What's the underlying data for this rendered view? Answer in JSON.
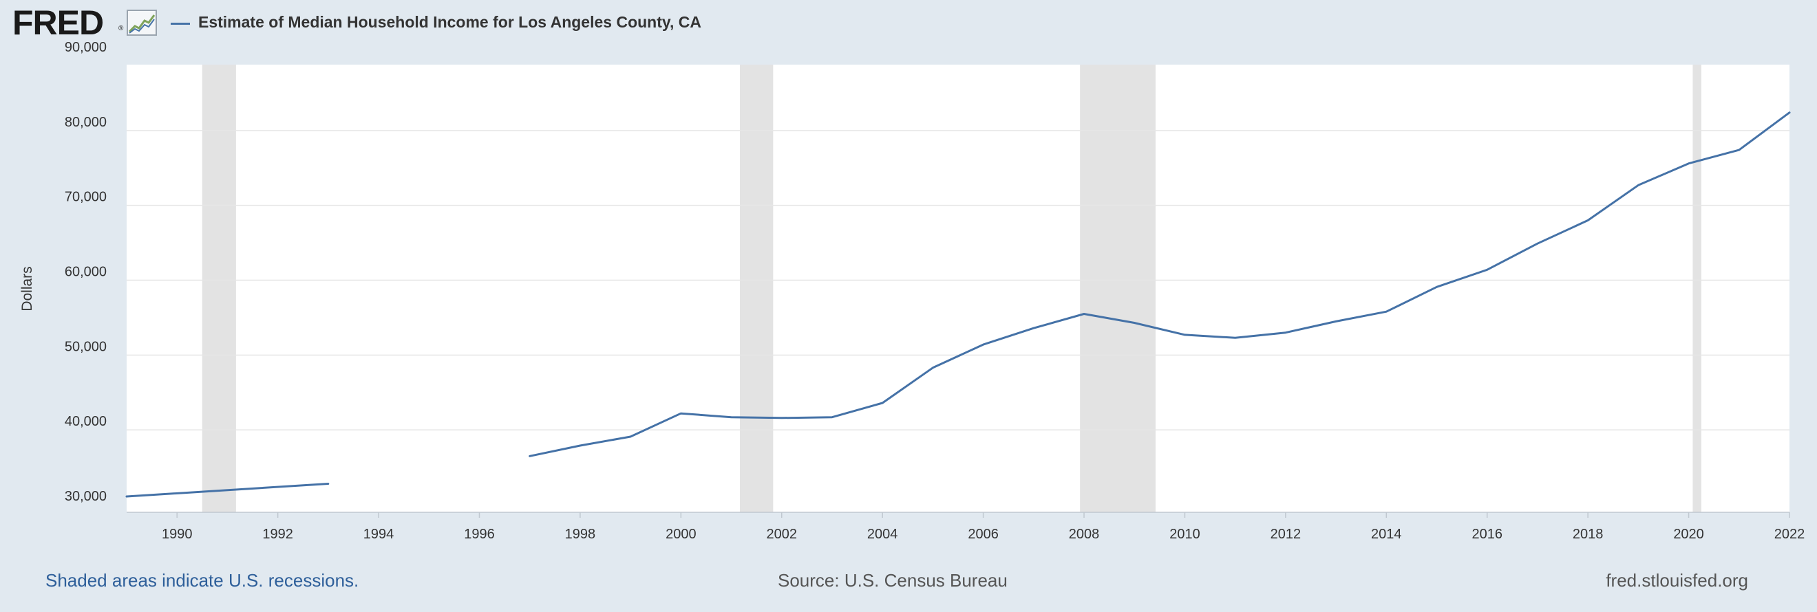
{
  "header": {
    "logo_text": "FRED",
    "logo_reg": "®",
    "legend_label": "Estimate of Median Household Income for Los Angeles County, CA"
  },
  "colors": {
    "series": "#4572a7",
    "recession": "#e3e3e3",
    "background": "#e1e9f0",
    "plot_background": "#ffffff",
    "grid": "#e6e6e6"
  },
  "chart_data": {
    "type": "line",
    "title": "",
    "xlabel": "",
    "ylabel": "Dollars",
    "xlim": [
      1989,
      2022
    ],
    "ylim": [
      30000,
      90000
    ],
    "y_ticks": [
      30000,
      40000,
      50000,
      60000,
      70000,
      80000,
      90000
    ],
    "y_tick_labels": [
      "30,000",
      "40,000",
      "50,000",
      "60,000",
      "70,000",
      "80,000",
      "90,000"
    ],
    "x_ticks": [
      1990,
      1992,
      1994,
      1996,
      1998,
      2000,
      2002,
      2004,
      2006,
      2008,
      2010,
      2012,
      2014,
      2016,
      2018,
      2020,
      2022
    ],
    "x_tick_labels": [
      "1990",
      "1992",
      "1994",
      "1996",
      "1998",
      "2000",
      "2002",
      "2004",
      "2006",
      "2008",
      "2010",
      "2012",
      "2014",
      "2016",
      "2018",
      "2020",
      "2022"
    ],
    "grid": true,
    "legend_position": "top-left",
    "series": [
      {
        "name": "Estimate of Median Household Income for Los Angeles County, CA",
        "segments": [
          [
            {
              "x": 1989,
              "y": 31100
            },
            {
              "x": 1993,
              "y": 32800
            }
          ],
          [
            {
              "x": 1997,
              "y": 36500
            },
            {
              "x": 1998,
              "y": 37900
            },
            {
              "x": 1999,
              "y": 39100
            },
            {
              "x": 2000,
              "y": 42200
            },
            {
              "x": 2001,
              "y": 41700
            },
            {
              "x": 2002,
              "y": 41600
            },
            {
              "x": 2003,
              "y": 41700
            },
            {
              "x": 2004,
              "y": 43600
            },
            {
              "x": 2005,
              "y": 48300
            },
            {
              "x": 2006,
              "y": 51400
            },
            {
              "x": 2007,
              "y": 53600
            },
            {
              "x": 2008,
              "y": 55500
            },
            {
              "x": 2009,
              "y": 54300
            },
            {
              "x": 2010,
              "y": 52700
            },
            {
              "x": 2011,
              "y": 52300
            },
            {
              "x": 2012,
              "y": 53000
            },
            {
              "x": 2013,
              "y": 54500
            },
            {
              "x": 2014,
              "y": 55800
            },
            {
              "x": 2015,
              "y": 59100
            },
            {
              "x": 2016,
              "y": 61400
            },
            {
              "x": 2017,
              "y": 64900
            },
            {
              "x": 2018,
              "y": 68000
            },
            {
              "x": 2019,
              "y": 72700
            },
            {
              "x": 2020,
              "y": 75600
            },
            {
              "x": 2021,
              "y": 77400
            },
            {
              "x": 2022,
              "y": 82400
            }
          ]
        ]
      }
    ],
    "recessions": [
      {
        "start": 1990.5,
        "end": 1991.17
      },
      {
        "start": 2001.17,
        "end": 2001.83
      },
      {
        "start": 2007.92,
        "end": 2009.42
      },
      {
        "start": 2020.08,
        "end": 2020.25
      }
    ]
  },
  "footer": {
    "recession_note": "Shaded areas indicate U.S. recessions.",
    "source": "Source: U.S. Census Bureau",
    "site": "fred.stlouisfed.org"
  }
}
